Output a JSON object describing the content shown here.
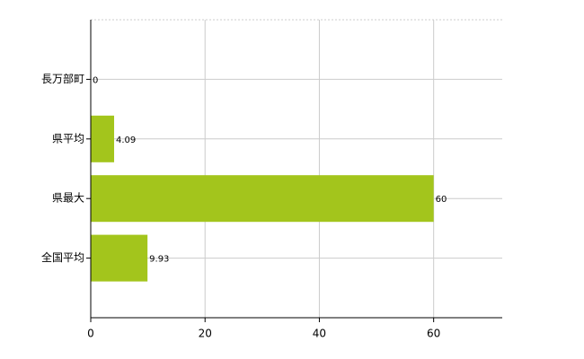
{
  "chart_data": {
    "type": "hbar",
    "categories": [
      "長万部町",
      "県平均",
      "県最大",
      "全国平均"
    ],
    "values": [
      0,
      4.09,
      60,
      9.93
    ],
    "color": "#a3c51c",
    "xlim": [
      0,
      72
    ],
    "xticks": [
      0,
      20,
      40,
      60
    ],
    "grid": true
  }
}
